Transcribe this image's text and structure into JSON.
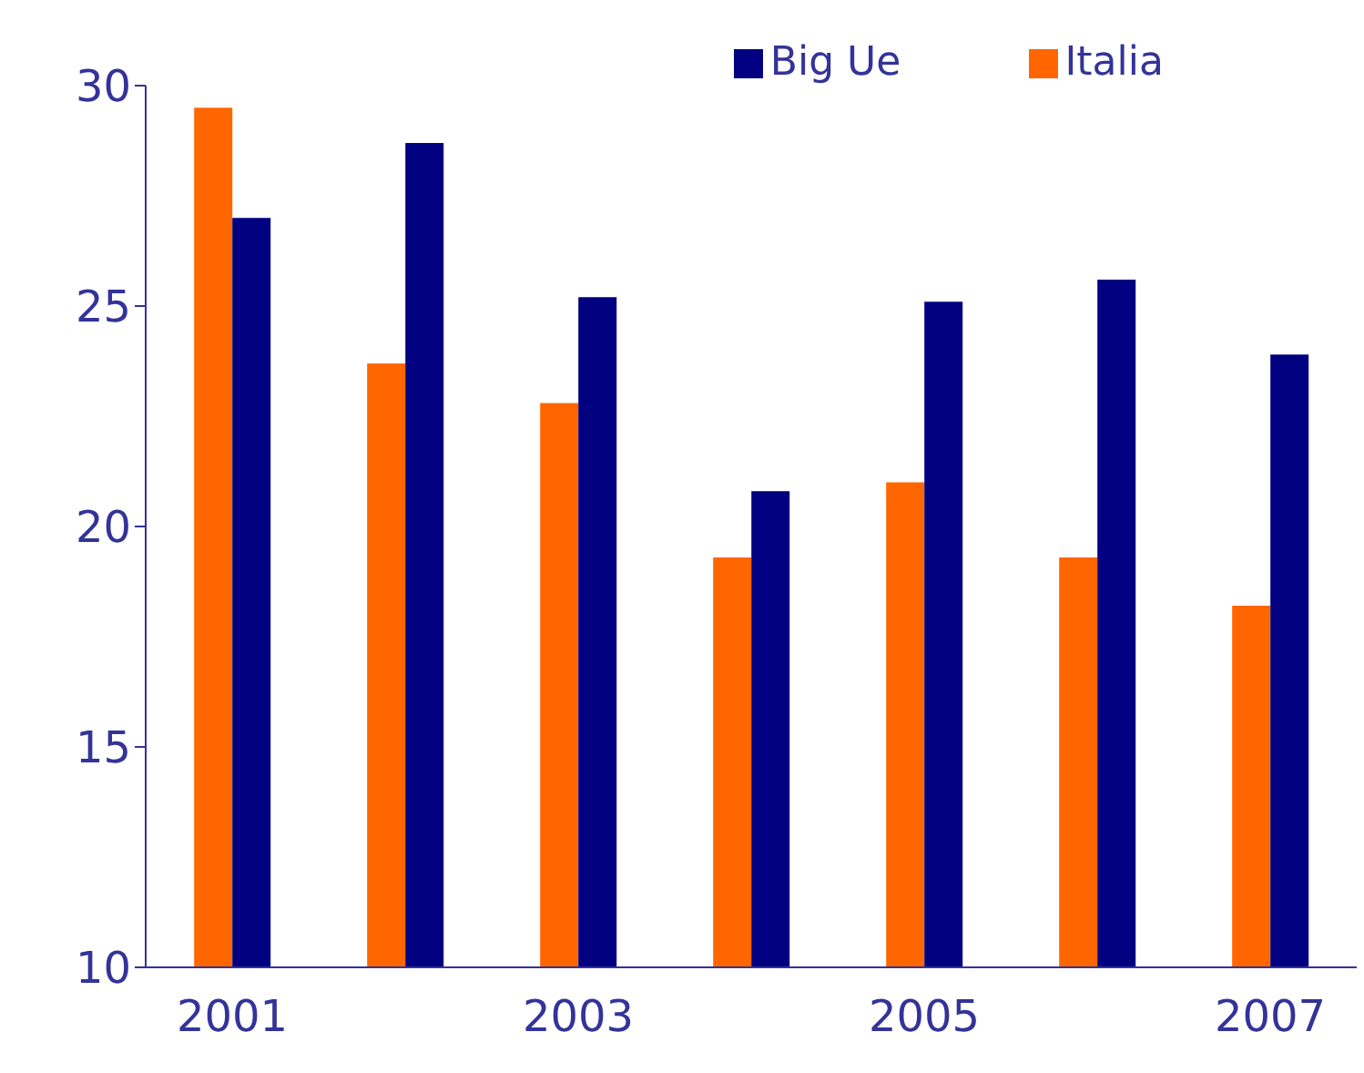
{
  "chart_data": {
    "type": "bar",
    "categories": [
      "2001",
      null,
      "2003",
      null,
      "2005",
      null,
      "2007"
    ],
    "series": [
      {
        "name": "Italia",
        "color": "#ff6600",
        "values": [
          29.5,
          23.7,
          22.8,
          19.3,
          21.0,
          19.3,
          18.2
        ]
      },
      {
        "name": "Big Ue",
        "color": "#000080",
        "values": [
          27.0,
          28.7,
          25.2,
          20.8,
          25.1,
          25.6,
          23.9
        ]
      }
    ],
    "ylim": [
      10,
      30
    ],
    "yticks": [
      10,
      15,
      20,
      25,
      30
    ],
    "grid": false,
    "legend": "top right"
  }
}
